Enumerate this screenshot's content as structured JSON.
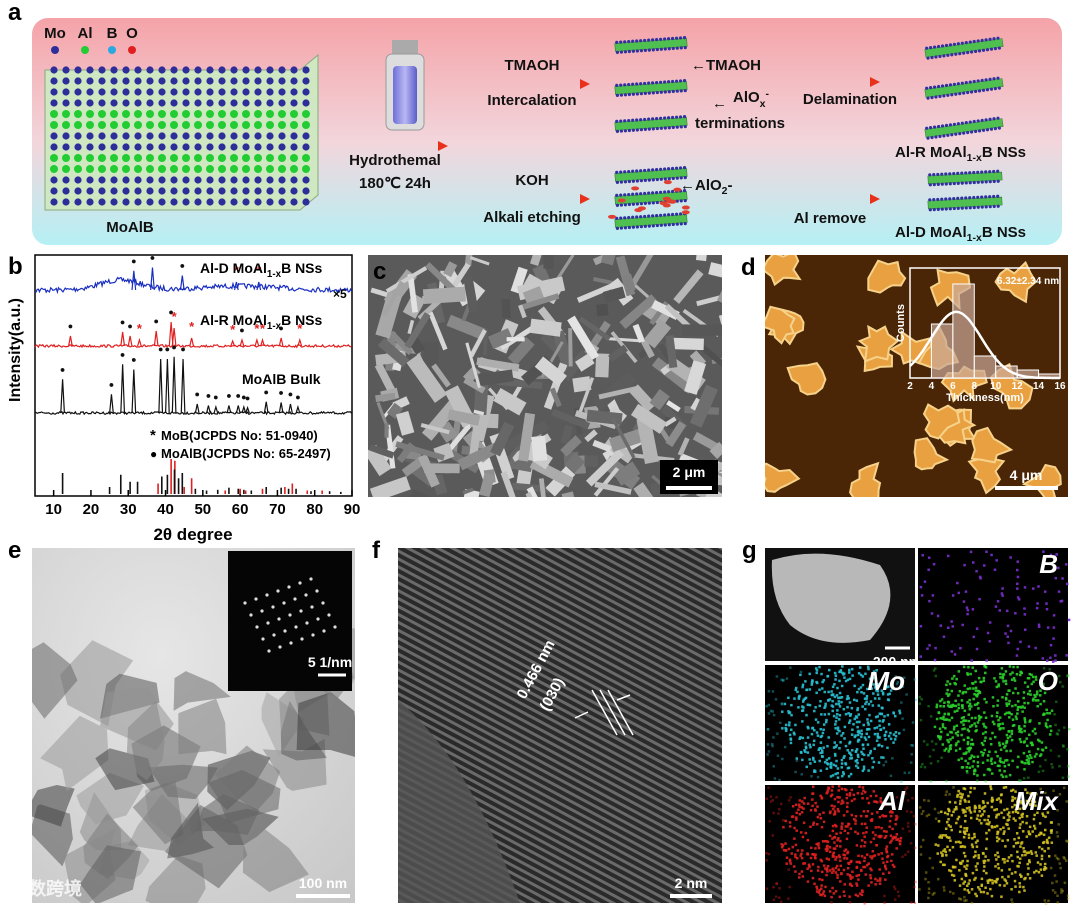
{
  "panel_a": {
    "letter": "a",
    "legend": [
      {
        "label": "Mo",
        "color": "#2e2e9a"
      },
      {
        "label": "Al",
        "color": "#22cc33"
      },
      {
        "label": "B",
        "color": "#2aa8e0"
      },
      {
        "label": "O",
        "color": "#e02020"
      }
    ],
    "crystal": "MoAlB",
    "hydro": [
      "Hydrothemal",
      "180℃  24h"
    ],
    "tmaoh": [
      "TMAOH",
      "Intercalation"
    ],
    "tmaoh_arrow": "←TMAOH",
    "alox": {
      "arrow": "←",
      "main": "AlO",
      "sub": "x",
      "sup": "-",
      "line2": "terminations"
    },
    "delamination": "Delamination",
    "al_r": [
      "Al-R MoAl",
      "1-x",
      "B NSs"
    ],
    "koh": [
      "KOH",
      "Alkali etching"
    ],
    "alo2": [
      "←AlO",
      "2",
      "-"
    ],
    "remove": "Al remove",
    "al_d": [
      "Al-D MoAl",
      "1-x",
      "B NSs"
    ]
  },
  "chart_data": [
    {
      "type": "xrd",
      "letter": "b",
      "xlabel": "2θ degree",
      "ylabel": "Intensity(a.u.)",
      "xlim": [
        5,
        90
      ],
      "xticks": [
        10,
        20,
        30,
        40,
        50,
        60,
        70,
        80,
        90
      ],
      "patterns": [
        {
          "name": [
            "Al-D MoAl",
            "1-x",
            "B NSs"
          ],
          "color": "#1a2fc0",
          "note": "×5",
          "peaks": [
            31.5,
            36.5,
            44.5,
            59,
            65
          ],
          "intensities": [
            12,
            14,
            9,
            5,
            5
          ],
          "phase": [
            1,
            1,
            1,
            0,
            0
          ]
        },
        {
          "name": [
            "Al-R MoAl",
            "1-x",
            "B NSs"
          ],
          "color": "#e02020",
          "peaks": [
            14.5,
            28.5,
            30.5,
            33,
            37.5,
            41.5,
            42.3,
            47,
            58,
            60.5,
            64.5,
            66,
            71,
            76
          ],
          "intensities": [
            10,
            14,
            10,
            6,
            15,
            24,
            18,
            8,
            5,
            6,
            6,
            6,
            8,
            6
          ],
          "phase": [
            1,
            1,
            1,
            0,
            1,
            1,
            0,
            0,
            0,
            1,
            0,
            0,
            1,
            0
          ]
        },
        {
          "name": [
            "MoAlB Bulk"
          ],
          "color": "#111111",
          "peaks": [
            12.4,
            25.5,
            28.5,
            31.5,
            38.7,
            40.5,
            42.3,
            44.7,
            48.5,
            51.5,
            53.5,
            57,
            59.5,
            61,
            62,
            67,
            71,
            73.5,
            75.5
          ],
          "intensities": [
            45,
            25,
            65,
            58,
            72,
            72,
            75,
            72,
            12,
            10,
            8,
            10,
            10,
            8,
            7,
            15,
            14,
            12,
            8
          ],
          "phase": [
            1,
            1,
            1,
            1,
            1,
            1,
            1,
            1,
            1,
            1,
            1,
            1,
            1,
            1,
            1,
            1,
            1,
            1,
            1
          ]
        }
      ],
      "references": [
        {
          "marker": "*",
          "name": "MoB(JCPDS No: 51-0940)",
          "color": "#e02020",
          "x": [
            38,
            41.5,
            42.5,
            45,
            47,
            56,
            60,
            61.5,
            66,
            72,
            74,
            78,
            82
          ],
          "values": [
            30,
            100,
            95,
            20,
            45,
            10,
            15,
            10,
            15,
            20,
            30,
            10,
            10
          ]
        },
        {
          "marker": "●",
          "name": "MoAlB(JCPDS No: 65-2497)",
          "color": "#111111",
          "x": [
            12.4,
            25,
            28,
            30.5,
            32.5,
            39,
            40.5,
            42.4,
            43.5,
            44.5,
            48,
            51,
            54,
            57,
            59.5,
            61,
            63,
            67,
            71,
            73,
            75,
            79,
            84,
            87
          ],
          "values": [
            60,
            20,
            55,
            35,
            35,
            50,
            55,
            70,
            45,
            60,
            15,
            10,
            12,
            18,
            15,
            12,
            10,
            20,
            18,
            15,
            15,
            8,
            8,
            6
          ]
        }
      ]
    },
    {
      "type": "histogram",
      "xlabel": "Thickness(nm)",
      "ylabel": "Counts",
      "annotation": "6.32±2.34 nm",
      "fit_mean": 6.32,
      "fit_sd": 2.34,
      "bins": [
        4,
        6,
        8,
        10,
        12,
        14,
        16
      ],
      "counts": [
        27,
        47,
        11,
        6,
        4,
        2
      ],
      "xlim": [
        2,
        16
      ],
      "xticks": [
        2,
        4,
        6,
        8,
        10,
        12,
        14,
        16
      ],
      "ylim": [
        0,
        50
      ],
      "color": "#c9a89a"
    }
  ],
  "panel_c": {
    "letter": "c",
    "scale_bar": "2 μm"
  },
  "panel_d": {
    "letter": "d",
    "scale_bar": "4 μm"
  },
  "panel_e": {
    "letter": "e",
    "scale_bar": "100 nm",
    "inset_scale_bar": "5 1/nm"
  },
  "panel_f": {
    "letter": "f",
    "spacing": "0.466 nm",
    "plane": "(030)",
    "scale_bar": "2 nm"
  },
  "panel_g": {
    "letter": "g",
    "scale_bar": "200 nm",
    "maps": [
      {
        "label": "B",
        "color": "#7b2fd0"
      },
      {
        "label": "Mo",
        "color": "#28c0d0"
      },
      {
        "label": "O",
        "color": "#2ad02a"
      },
      {
        "label": "Al",
        "color": "#e02020"
      },
      {
        "label": "Mix",
        "color": "#d0c020"
      }
    ]
  },
  "watermark": "大数跨境"
}
